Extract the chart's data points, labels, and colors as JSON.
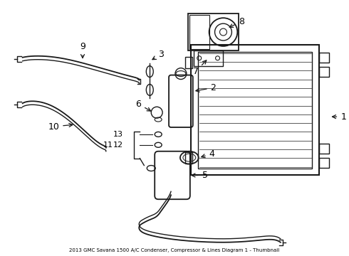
{
  "title": "2013 GMC Savana 1500 A/C Condenser, Compressor & Lines Diagram 1 - Thumbnail",
  "bg_color": "#ffffff",
  "line_color": "#1a1a1a",
  "fig_width": 4.9,
  "fig_height": 3.6,
  "dpi": 100
}
